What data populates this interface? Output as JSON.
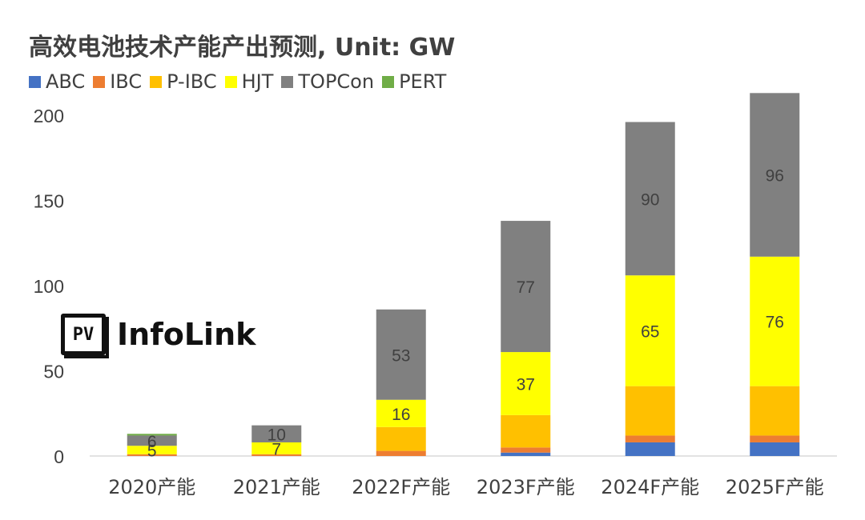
{
  "chart_data": {
    "type": "bar",
    "stacked": true,
    "title": "高效电池技术产能产出预测, Unit: GW",
    "categories": [
      "2020产能",
      "2021产能",
      "2022F产能",
      "2023F产能",
      "2024F产能",
      "2025F产能"
    ],
    "ylim": [
      0,
      200
    ],
    "yticks": [
      0,
      50,
      100,
      150,
      200
    ],
    "grid": false,
    "legend_position": "top-left",
    "series": [
      {
        "name": "ABC",
        "color": "#4472C4",
        "values": [
          0,
          0,
          0,
          2,
          8,
          8
        ]
      },
      {
        "name": "IBC",
        "color": "#ED7D31",
        "values": [
          1,
          1,
          3,
          3,
          4,
          4
        ]
      },
      {
        "name": "P-IBC",
        "color": "#FFC000",
        "values": [
          0,
          0,
          14,
          19,
          29,
          29
        ]
      },
      {
        "name": "HJT",
        "color": "#FFFF00",
        "values": [
          5,
          7,
          16,
          37,
          65,
          76
        ]
      },
      {
        "name": "TOPCon",
        "color": "#808080",
        "values": [
          6,
          10,
          53,
          77,
          90,
          96
        ]
      },
      {
        "name": "PERT",
        "color": "#70AD47",
        "values": [
          1,
          0,
          0,
          0,
          0,
          0
        ]
      }
    ],
    "data_labels": [
      {
        "series": "HJT",
        "values": [
          "5",
          "7",
          "16",
          "37",
          "65",
          "76"
        ]
      },
      {
        "series": "TOPCon",
        "values": [
          "6",
          "10",
          "53",
          "77",
          "90",
          "96"
        ]
      }
    ]
  },
  "watermark": {
    "mark": "PV",
    "text": "InfoLink"
  }
}
